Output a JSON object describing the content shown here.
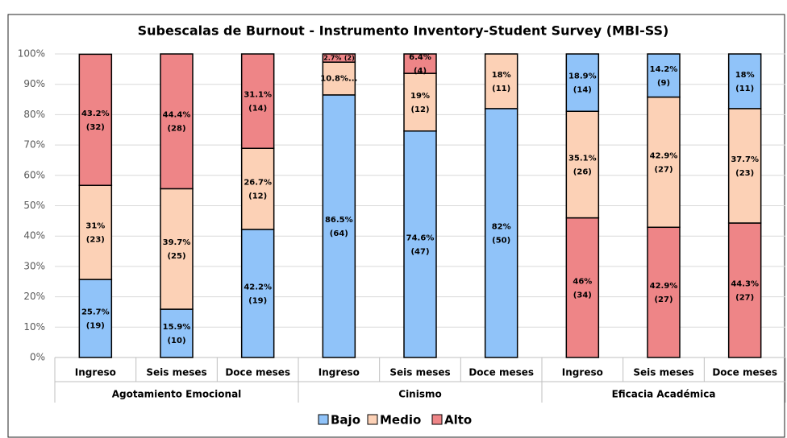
{
  "chart_data": {
    "type": "stacked_bar",
    "title": "Subescalas de Burnout -  Instrumento Inventory-Student Survey (MBI-SS)",
    "categories": [
      "Ingreso",
      "Seis meses",
      "Doce meses",
      "Ingreso",
      "Seis meses",
      "Doce meses",
      "Ingreso",
      "Seis meses",
      "Doce meses"
    ],
    "groups": [
      {
        "name": "Agotamiento Emocional",
        "start": 0,
        "end": 3,
        "stack_order": [
          0,
          1,
          2
        ]
      },
      {
        "name": "Cinismo",
        "start": 3,
        "end": 6,
        "stack_order": [
          0,
          1,
          2
        ]
      },
      {
        "name": "Eficacia Académica",
        "start": 6,
        "end": 9,
        "stack_order": [
          2,
          1,
          0
        ]
      }
    ],
    "series": [
      {
        "name": "Bajo",
        "color": "#90c3f9",
        "values": [
          25.7,
          15.9,
          42.2,
          86.5,
          74.6,
          82,
          18.9,
          14.2,
          18
        ],
        "value_labels": [
          "25.7%",
          "15.9%",
          "42.2%",
          "86.5%",
          "74.6%",
          "82%",
          "18.9%",
          "14.2%",
          "18%"
        ],
        "count_labels": [
          "(19)",
          "(10)",
          "(19)",
          "(64)",
          "(47)",
          "(50)",
          "(14)",
          "(9)",
          "(11)"
        ]
      },
      {
        "name": "Medio",
        "color": "#fcd1b6",
        "values": [
          31,
          39.7,
          26.7,
          10.8,
          19,
          18,
          35.1,
          42.9,
          37.7
        ],
        "value_labels": [
          "31%",
          "39.7%",
          "26.7%",
          "10.8%...",
          "19%",
          "18%",
          "35.1%",
          "42.9%",
          "37.7%"
        ],
        "count_labels": [
          "(23)",
          "(25)",
          "(12)",
          null,
          "(12)",
          "(11)",
          "(26)",
          "(27)",
          "(23)"
        ]
      },
      {
        "name": "Alto",
        "color": "#ee8587",
        "values": [
          43.2,
          44.4,
          31.1,
          2.7,
          6.4,
          null,
          46,
          42.9,
          44.3
        ],
        "value_labels": [
          "43.2%",
          "44.4%",
          "31.1%",
          "2.7%",
          "6.4%",
          null,
          "46%",
          "42.9%",
          "44.3%"
        ],
        "count_labels": [
          "(32)",
          "(28)",
          "(14)",
          "(2)",
          "(4)",
          null,
          "(34)",
          "(27)",
          "(27)"
        ]
      }
    ],
    "ylim": [
      0,
      100
    ],
    "yticks": [
      {
        "value": 0,
        "label": "0%"
      },
      {
        "value": 10,
        "label": "10%"
      },
      {
        "value": 20,
        "label": "20%"
      },
      {
        "value": 30,
        "label": "30%"
      },
      {
        "value": 40,
        "label": "40%"
      },
      {
        "value": 50,
        "label": "50%"
      },
      {
        "value": 60,
        "label": "60%"
      },
      {
        "value": 70,
        "label": "70%"
      },
      {
        "value": 80,
        "label": "80%"
      },
      {
        "value": 90,
        "label": "90%"
      },
      {
        "value": 100,
        "label": "100%"
      }
    ],
    "grid": true,
    "legend": "bottom"
  }
}
